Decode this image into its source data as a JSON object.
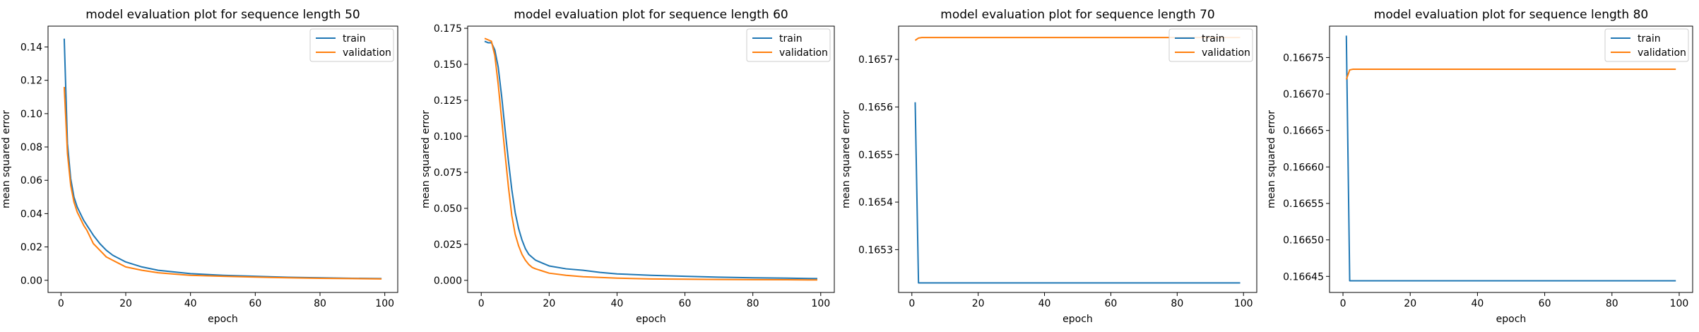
{
  "chart_data": [
    {
      "type": "line",
      "title": "model evaluation plot for sequence length 50",
      "xlabel": "epoch",
      "ylabel": "mean squared error",
      "xlim": [
        -4,
        104
      ],
      "ylim": [
        -0.0073,
        0.1525
      ],
      "xticks": [
        0,
        20,
        40,
        60,
        80,
        100
      ],
      "xtick_labels": [
        "0",
        "20",
        "40",
        "60",
        "80",
        "100"
      ],
      "yticks": [
        0.0,
        0.02,
        0.04,
        0.06,
        0.08,
        0.1,
        0.12,
        0.14
      ],
      "ytick_labels": [
        "0.00",
        "0.02",
        "0.04",
        "0.06",
        "0.08",
        "0.10",
        "0.12",
        "0.14"
      ],
      "legend": "top-right",
      "series": [
        {
          "name": "train",
          "color": "#1f77b4",
          "x": [
            1,
            2,
            3,
            4,
            5,
            6,
            7,
            8,
            10,
            12,
            14,
            16,
            18,
            20,
            25,
            30,
            35,
            40,
            50,
            60,
            70,
            80,
            90,
            99
          ],
          "y": [
            0.145,
            0.082,
            0.061,
            0.05,
            0.044,
            0.04,
            0.036,
            0.033,
            0.027,
            0.022,
            0.018,
            0.015,
            0.013,
            0.011,
            0.008,
            0.006,
            0.005,
            0.004,
            0.003,
            0.0024,
            0.0018,
            0.0015,
            0.0012,
            0.001
          ]
        },
        {
          "name": "validation",
          "color": "#ff7f0e",
          "x": [
            1,
            2,
            3,
            4,
            5,
            6,
            7,
            8,
            10,
            12,
            14,
            16,
            18,
            20,
            25,
            30,
            35,
            40,
            50,
            60,
            70,
            80,
            90,
            99
          ],
          "y": [
            0.116,
            0.076,
            0.057,
            0.047,
            0.041,
            0.037,
            0.033,
            0.03,
            0.022,
            0.018,
            0.014,
            0.012,
            0.01,
            0.008,
            0.006,
            0.0045,
            0.0037,
            0.003,
            0.0024,
            0.0019,
            0.0015,
            0.0012,
            0.001,
            0.0008
          ]
        }
      ]
    },
    {
      "type": "line",
      "title": "model evaluation plot for sequence length 60",
      "xlabel": "epoch",
      "ylabel": "mean squared error",
      "xlim": [
        -4,
        104
      ],
      "ylim": [
        -0.0084,
        0.1765
      ],
      "xticks": [
        0,
        20,
        40,
        60,
        80,
        100
      ],
      "xtick_labels": [
        "0",
        "20",
        "40",
        "60",
        "80",
        "100"
      ],
      "yticks": [
        0.0,
        0.025,
        0.05,
        0.075,
        0.1,
        0.125,
        0.15,
        0.175
      ],
      "ytick_labels": [
        "0.000",
        "0.025",
        "0.050",
        "0.075",
        "0.100",
        "0.125",
        "0.150",
        "0.175"
      ],
      "legend": "top-right",
      "series": [
        {
          "name": "train",
          "color": "#1f77b4",
          "x": [
            1,
            2,
            3,
            4,
            5,
            6,
            7,
            8,
            9,
            10,
            11,
            12,
            13,
            14,
            15,
            16,
            18,
            20,
            25,
            30,
            35,
            40,
            50,
            60,
            70,
            80,
            90,
            99
          ],
          "y": [
            0.166,
            0.165,
            0.165,
            0.16,
            0.148,
            0.128,
            0.105,
            0.083,
            0.063,
            0.047,
            0.036,
            0.028,
            0.022,
            0.018,
            0.016,
            0.014,
            0.012,
            0.01,
            0.008,
            0.007,
            0.0055,
            0.0045,
            0.0035,
            0.0028,
            0.0022,
            0.0018,
            0.0015,
            0.0012
          ]
        },
        {
          "name": "validation",
          "color": "#ff7f0e",
          "x": [
            1,
            2,
            3,
            4,
            5,
            6,
            7,
            8,
            9,
            10,
            11,
            12,
            13,
            14,
            15,
            16,
            18,
            20,
            25,
            30,
            35,
            40,
            50,
            60,
            70,
            80,
            90,
            99
          ],
          "y": [
            0.168,
            0.167,
            0.166,
            0.156,
            0.136,
            0.112,
            0.088,
            0.065,
            0.045,
            0.032,
            0.024,
            0.018,
            0.014,
            0.011,
            0.009,
            0.008,
            0.0065,
            0.005,
            0.0035,
            0.0025,
            0.002,
            0.0015,
            0.001,
            0.0008,
            0.0006,
            0.0005,
            0.0004,
            0.0003
          ]
        }
      ]
    },
    {
      "type": "line",
      "title": "model evaluation plot for sequence length 70",
      "xlabel": "epoch",
      "ylabel": "mean squared error",
      "xlim": [
        -4,
        104
      ],
      "ylim": [
        0.16521,
        0.16577
      ],
      "xticks": [
        0,
        20,
        40,
        60,
        80,
        100
      ],
      "xtick_labels": [
        "0",
        "20",
        "40",
        "60",
        "80",
        "100"
      ],
      "yticks": [
        0.1653,
        0.1654,
        0.1655,
        0.1656,
        0.1657
      ],
      "ytick_labels": [
        "0.1653",
        "0.1654",
        "0.1655",
        "0.1656",
        "0.1657"
      ],
      "legend": "top-right",
      "series": [
        {
          "name": "train",
          "color": "#1f77b4",
          "x": [
            1,
            2,
            3,
            10,
            50,
            99
          ],
          "y": [
            0.16561,
            0.16523,
            0.16523,
            0.16523,
            0.16523,
            0.16523
          ]
        },
        {
          "name": "validation",
          "color": "#ff7f0e",
          "x": [
            1,
            2,
            3,
            10,
            50,
            99
          ],
          "y": [
            0.16574,
            0.165745,
            0.165746,
            0.165746,
            0.165746,
            0.165746
          ]
        }
      ]
    },
    {
      "type": "line",
      "title": "model evaluation plot for sequence length 80",
      "xlabel": "epoch",
      "ylabel": "mean squared error",
      "xlim": [
        -4,
        104
      ],
      "ylim": [
        0.166428,
        0.166793
      ],
      "xticks": [
        0,
        20,
        40,
        60,
        80,
        100
      ],
      "xtick_labels": [
        "0",
        "20",
        "40",
        "60",
        "80",
        "100"
      ],
      "yticks": [
        0.16645,
        0.1665,
        0.16655,
        0.1666,
        0.16665,
        0.1667,
        0.16675
      ],
      "ytick_labels": [
        "0.16645",
        "0.16650",
        "0.16655",
        "0.16660",
        "0.16665",
        "0.16670",
        "0.16675"
      ],
      "legend": "top-right",
      "series": [
        {
          "name": "train",
          "color": "#1f77b4",
          "x": [
            1,
            2,
            3,
            10,
            50,
            99
          ],
          "y": [
            0.16678,
            0.166444,
            0.166444,
            0.166444,
            0.166444,
            0.166444
          ]
        },
        {
          "name": "validation",
          "color": "#ff7f0e",
          "x": [
            1,
            2,
            3,
            10,
            50,
            99
          ],
          "y": [
            0.16672,
            0.166733,
            0.166734,
            0.166734,
            0.166734,
            0.166734
          ]
        }
      ]
    }
  ]
}
